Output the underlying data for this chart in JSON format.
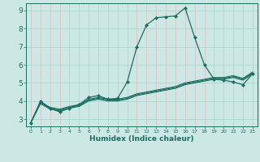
{
  "xlabel": "Humidex (Indice chaleur)",
  "background_color": "#cce8e4",
  "grid_color_v": "#e8b8b8",
  "grid_color_h": "#a8d4ce",
  "line_color": "#1a6e62",
  "xlim": [
    -0.5,
    23.5
  ],
  "ylim": [
    2.6,
    9.4
  ],
  "xticks": [
    0,
    1,
    2,
    3,
    4,
    5,
    6,
    7,
    8,
    9,
    10,
    11,
    12,
    13,
    14,
    15,
    16,
    17,
    18,
    19,
    20,
    21,
    22,
    23
  ],
  "yticks": [
    3,
    4,
    5,
    6,
    7,
    8,
    9
  ],
  "lines": [
    {
      "x": [
        0,
        1,
        2,
        3,
        4,
        5,
        6,
        7,
        8,
        9,
        10,
        11,
        12,
        13,
        14,
        15,
        16,
        17,
        18,
        19,
        20,
        21,
        22,
        23
      ],
      "y": [
        2.8,
        4.0,
        3.6,
        3.4,
        3.6,
        3.8,
        4.2,
        4.3,
        4.1,
        4.15,
        5.05,
        7.0,
        8.2,
        8.6,
        8.65,
        8.7,
        9.15,
        7.5,
        6.0,
        5.2,
        5.15,
        5.05,
        4.9,
        5.5
      ],
      "with_markers": true
    },
    {
      "x": [
        0,
        1,
        2,
        3,
        4,
        5,
        6,
        7,
        8,
        9,
        10,
        11,
        12,
        13,
        14,
        15,
        16,
        17,
        18,
        19,
        20,
        21,
        22,
        23
      ],
      "y": [
        2.8,
        3.85,
        3.55,
        3.45,
        3.6,
        3.7,
        4.0,
        4.1,
        4.0,
        4.0,
        4.1,
        4.3,
        4.4,
        4.5,
        4.6,
        4.7,
        4.9,
        5.0,
        5.1,
        5.2,
        5.2,
        5.3,
        5.15,
        5.5
      ],
      "with_markers": false
    },
    {
      "x": [
        0,
        1,
        2,
        3,
        4,
        5,
        6,
        7,
        8,
        9,
        10,
        11,
        12,
        13,
        14,
        15,
        16,
        17,
        18,
        19,
        20,
        21,
        22,
        23
      ],
      "y": [
        2.8,
        3.9,
        3.6,
        3.5,
        3.65,
        3.75,
        4.05,
        4.15,
        4.05,
        4.05,
        4.15,
        4.35,
        4.45,
        4.55,
        4.65,
        4.75,
        4.95,
        5.05,
        5.15,
        5.25,
        5.25,
        5.35,
        5.2,
        5.55
      ],
      "with_markers": false
    },
    {
      "x": [
        0,
        1,
        2,
        3,
        4,
        5,
        6,
        7,
        8,
        9,
        10,
        11,
        12,
        13,
        14,
        15,
        16,
        17,
        18,
        19,
        20,
        21,
        22,
        23
      ],
      "y": [
        2.8,
        3.95,
        3.65,
        3.55,
        3.7,
        3.8,
        4.1,
        4.2,
        4.1,
        4.1,
        4.2,
        4.4,
        4.5,
        4.6,
        4.7,
        4.8,
        5.0,
        5.1,
        5.2,
        5.3,
        5.3,
        5.4,
        5.25,
        5.6
      ],
      "with_markers": false
    }
  ]
}
